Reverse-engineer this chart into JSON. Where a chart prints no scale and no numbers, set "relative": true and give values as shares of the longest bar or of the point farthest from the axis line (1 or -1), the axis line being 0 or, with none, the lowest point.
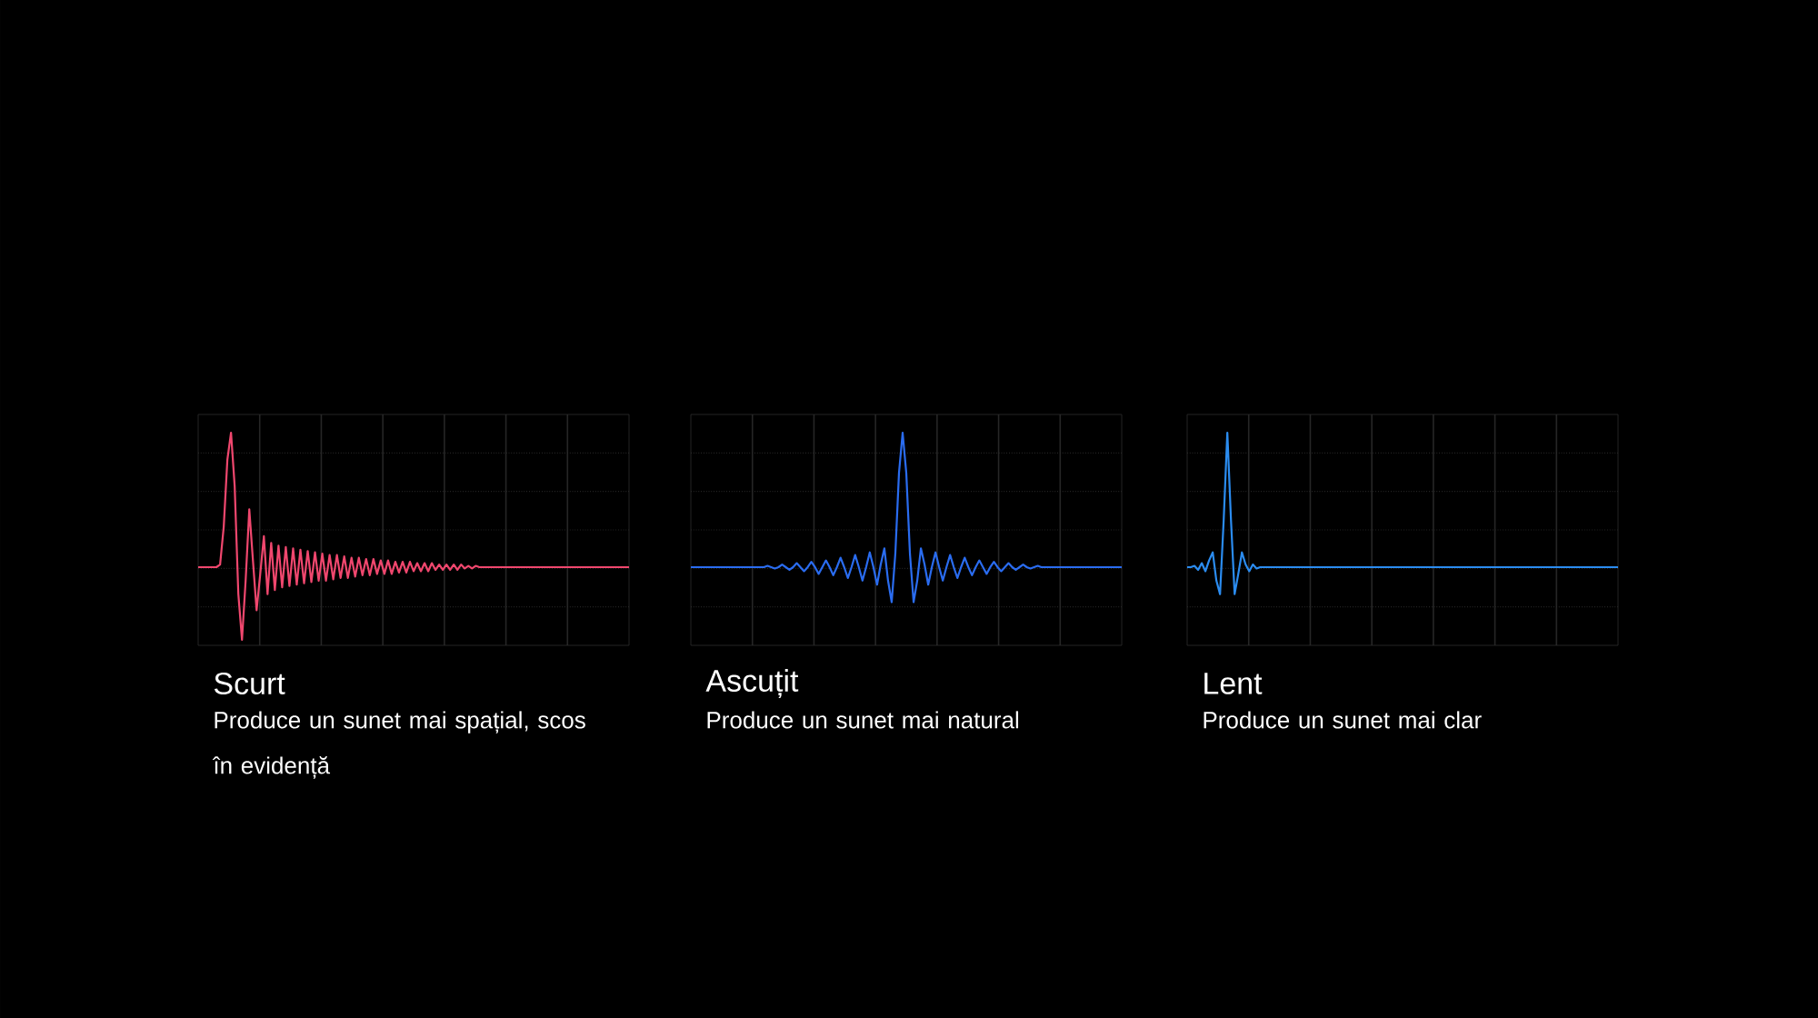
{
  "chart_data": [
    {
      "type": "line",
      "relative": true,
      "grid": true,
      "title": "Scurt",
      "subtitle": "Produce un sunet mai spațial, scos în evidență",
      "categories": [
        null,
        null,
        null,
        null,
        null,
        null,
        null,
        null,
        null,
        null,
        null,
        null,
        null,
        null,
        null,
        null,
        null,
        null,
        null,
        null,
        null,
        null,
        null,
        null,
        null,
        null,
        null,
        null,
        null,
        null,
        null,
        null,
        null,
        null,
        null,
        null,
        null,
        null,
        null,
        null,
        null,
        null,
        null,
        null,
        null,
        null,
        null,
        null,
        null,
        null,
        null,
        null,
        null,
        null,
        null,
        null,
        null,
        null,
        null,
        null,
        null,
        null,
        null,
        null,
        null,
        null,
        null,
        null,
        null,
        null,
        null,
        null,
        null,
        null,
        null,
        null,
        null,
        null,
        null,
        null,
        null,
        null,
        null,
        null,
        null,
        null,
        null,
        null,
        null,
        null,
        null,
        null,
        null,
        null,
        null,
        null,
        null,
        null,
        null,
        null,
        null,
        null,
        null,
        null,
        null,
        null,
        null,
        null,
        null,
        null,
        null,
        null,
        null,
        null,
        null,
        null,
        null,
        null,
        null
      ],
      "series": [
        {
          "color": "#f0476e",
          "values": [
            0,
            0,
            0,
            0,
            0,
            0,
            0.02,
            0.3,
            0.8,
            1,
            0.6,
            -0.2,
            -0.54,
            -0.1,
            0.43,
            0.05,
            -0.32,
            -0.05,
            0.23,
            -0.2,
            0.18,
            -0.17,
            0.16,
            -0.15,
            0.15,
            -0.14,
            0.14,
            -0.13,
            0.13,
            -0.12,
            0.12,
            -0.11,
            0.11,
            -0.1,
            0.1,
            -0.1,
            0.09,
            -0.09,
            0.09,
            -0.08,
            0.08,
            -0.08,
            0.07,
            -0.07,
            0.07,
            -0.06,
            0.06,
            -0.06,
            0.06,
            -0.05,
            0.05,
            -0.05,
            0.05,
            -0.05,
            0.04,
            -0.04,
            0.04,
            -0.04,
            0.04,
            -0.03,
            0.03,
            -0.03,
            0.03,
            -0.03,
            0.03,
            -0.02,
            0.02,
            -0.02,
            0.02,
            -0.02,
            0.02,
            -0.02,
            0.02,
            -0.01,
            0.01,
            -0.01,
            0.01,
            0,
            0,
            0,
            0,
            0,
            0,
            0,
            0,
            0,
            0,
            0,
            0,
            0,
            0,
            0,
            0,
            0,
            0,
            0,
            0,
            0,
            0,
            0,
            0,
            0,
            0,
            0,
            0,
            0,
            0,
            0,
            0,
            0,
            0,
            0,
            0,
            0,
            0,
            0,
            0,
            0,
            0
          ]
        }
      ]
    },
    {
      "type": "line",
      "relative": true,
      "grid": true,
      "title": "Ascuțit",
      "subtitle": "Produce un sunet mai natural",
      "categories": [
        null,
        null,
        null,
        null,
        null,
        null,
        null,
        null,
        null,
        null,
        null,
        null,
        null,
        null,
        null,
        null,
        null,
        null,
        null,
        null,
        null,
        null,
        null,
        null,
        null,
        null,
        null,
        null,
        null,
        null,
        null,
        null,
        null,
        null,
        null,
        null,
        null,
        null,
        null,
        null,
        null,
        null,
        null,
        null,
        null,
        null,
        null,
        null,
        null,
        null,
        null,
        null,
        null,
        null,
        null,
        null,
        null,
        null,
        null,
        null,
        null,
        null,
        null,
        null,
        null,
        null,
        null,
        null,
        null,
        null,
        null,
        null,
        null,
        null,
        null,
        null,
        null,
        null,
        null,
        null,
        null,
        null,
        null,
        null,
        null,
        null,
        null,
        null,
        null,
        null,
        null,
        null,
        null,
        null,
        null,
        null,
        null,
        null,
        null,
        null,
        null,
        null,
        null,
        null,
        null,
        null,
        null,
        null,
        null,
        null,
        null,
        null,
        null,
        null,
        null,
        null,
        null,
        null,
        null
      ],
      "series": [
        {
          "color": "#2a6cf0",
          "values": [
            0,
            0,
            0,
            0,
            0,
            0,
            0,
            0,
            0,
            0,
            0,
            0,
            0,
            0,
            0,
            0,
            0,
            0,
            0,
            0,
            0,
            0.01,
            0,
            -0.01,
            0,
            0.02,
            0,
            -0.02,
            0,
            0.03,
            0,
            -0.03,
            0,
            0.04,
            0,
            -0.05,
            0,
            0.05,
            0,
            -0.06,
            0,
            0.07,
            0,
            -0.08,
            0,
            0.09,
            0,
            -0.1,
            0,
            0.11,
            0,
            -0.13,
            0.02,
            0.14,
            -0.1,
            -0.26,
            0.1,
            0.7,
            1,
            0.7,
            0.1,
            -0.26,
            -0.1,
            0.14,
            0.02,
            -0.13,
            0,
            0.11,
            0,
            -0.1,
            0,
            0.09,
            0,
            -0.08,
            0,
            0.07,
            0,
            -0.06,
            0,
            0.05,
            0,
            -0.05,
            0,
            0.04,
            0,
            -0.03,
            0,
            0.03,
            0,
            -0.02,
            0,
            0.02,
            0,
            -0.01,
            0,
            0.01,
            0,
            0,
            0,
            0,
            0,
            0,
            0,
            0,
            0,
            0,
            0,
            0,
            0,
            0,
            0,
            0,
            0,
            0,
            0,
            0,
            0,
            0,
            0
          ]
        }
      ]
    },
    {
      "type": "line",
      "relative": true,
      "grid": true,
      "title": "Lent",
      "subtitle": "Produce un sunet mai clar",
      "categories": [
        null,
        null,
        null,
        null,
        null,
        null,
        null,
        null,
        null,
        null,
        null,
        null,
        null,
        null,
        null,
        null,
        null,
        null,
        null,
        null,
        null,
        null,
        null,
        null,
        null,
        null,
        null,
        null,
        null,
        null,
        null,
        null,
        null,
        null,
        null,
        null,
        null,
        null,
        null,
        null,
        null,
        null,
        null,
        null,
        null,
        null,
        null,
        null,
        null,
        null,
        null,
        null,
        null,
        null,
        null,
        null,
        null,
        null,
        null,
        null,
        null,
        null,
        null,
        null,
        null,
        null,
        null,
        null,
        null,
        null,
        null,
        null,
        null,
        null,
        null,
        null,
        null,
        null,
        null,
        null,
        null,
        null,
        null,
        null,
        null,
        null,
        null,
        null,
        null,
        null,
        null,
        null,
        null,
        null,
        null,
        null,
        null,
        null,
        null,
        null,
        null,
        null,
        null,
        null,
        null,
        null,
        null,
        null,
        null,
        null,
        null,
        null,
        null,
        null,
        null,
        null,
        null,
        null,
        null
      ],
      "series": [
        {
          "color": "#2b8cf0",
          "values": [
            0,
            0,
            0.01,
            -0.02,
            0.03,
            -0.03,
            0.05,
            0.11,
            -0.1,
            -0.2,
            0.35,
            1,
            0.35,
            -0.2,
            -0.05,
            0.11,
            0.02,
            -0.03,
            0.02,
            -0.01,
            0,
            0,
            0,
            0,
            0,
            0,
            0,
            0,
            0,
            0,
            0,
            0,
            0,
            0,
            0,
            0,
            0,
            0,
            0,
            0,
            0,
            0,
            0,
            0,
            0,
            0,
            0,
            0,
            0,
            0,
            0,
            0,
            0,
            0,
            0,
            0,
            0,
            0,
            0,
            0,
            0,
            0,
            0,
            0,
            0,
            0,
            0,
            0,
            0,
            0,
            0,
            0,
            0,
            0,
            0,
            0,
            0,
            0,
            0,
            0,
            0,
            0,
            0,
            0,
            0,
            0,
            0,
            0,
            0,
            0,
            0,
            0,
            0,
            0,
            0,
            0,
            0,
            0,
            0,
            0,
            0,
            0,
            0,
            0,
            0,
            0,
            0,
            0,
            0,
            0,
            0,
            0,
            0,
            0,
            0,
            0,
            0,
            0,
            0
          ]
        }
      ]
    }
  ]
}
